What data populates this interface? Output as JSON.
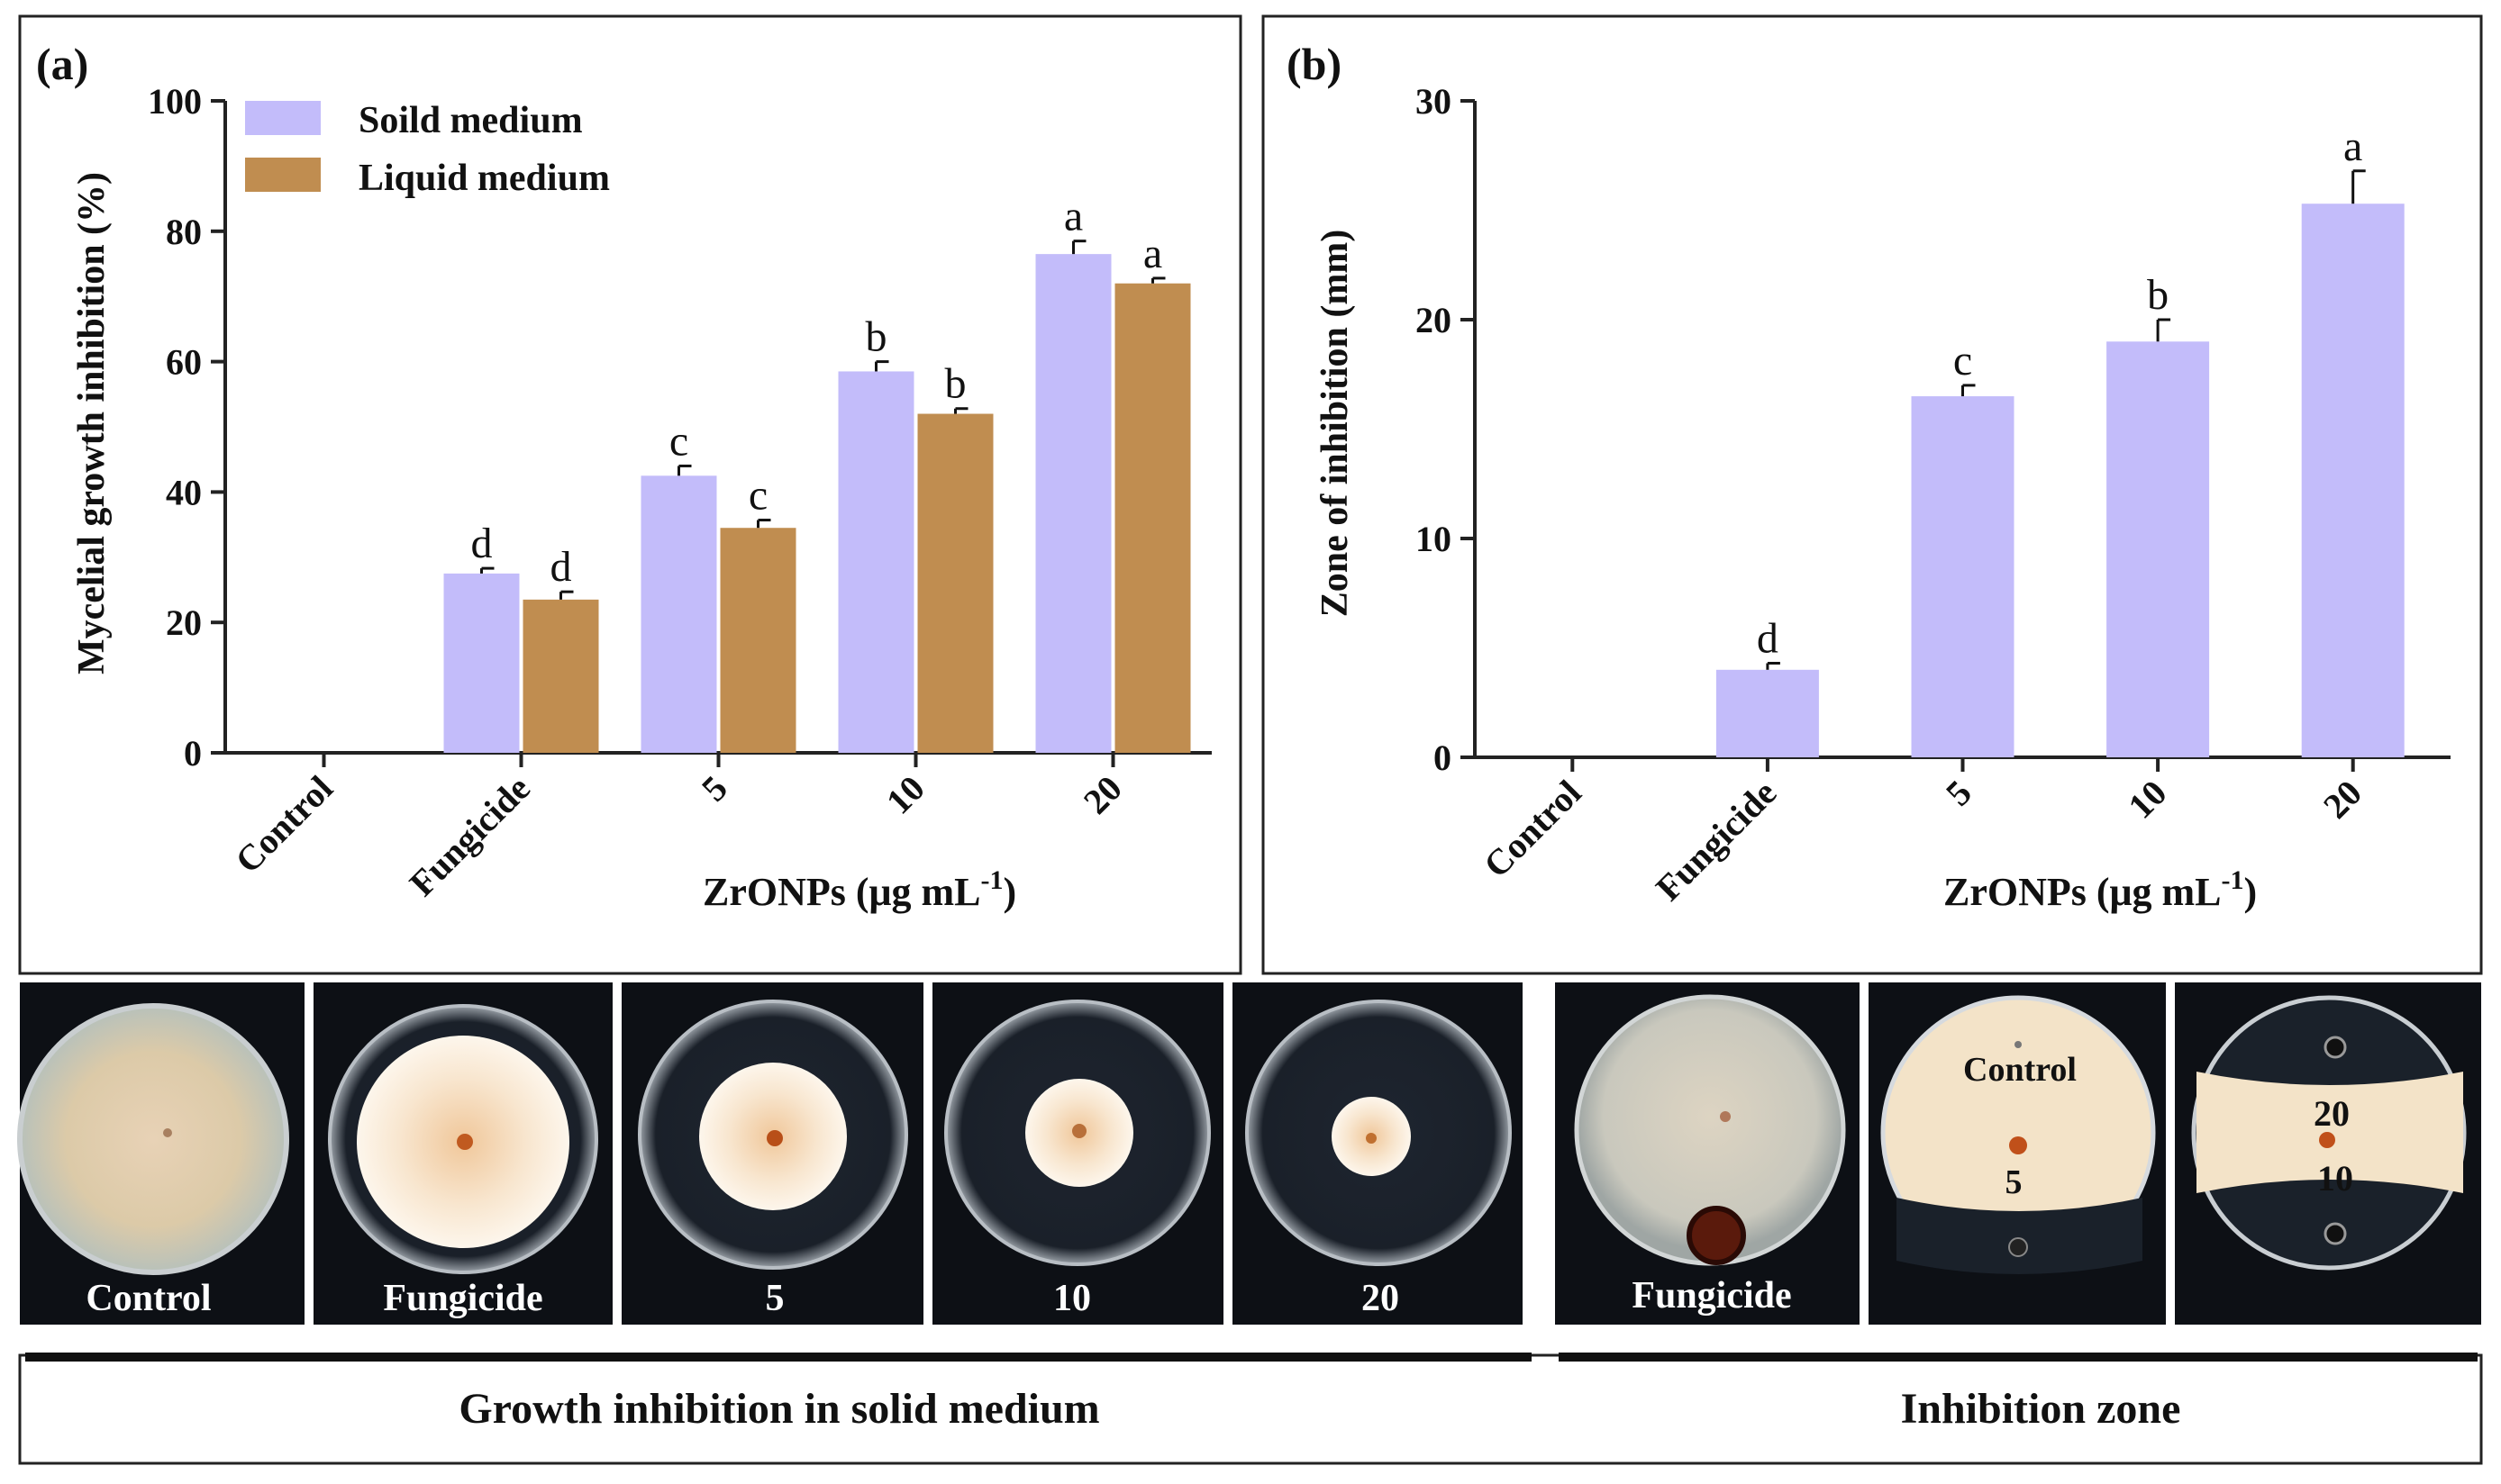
{
  "chart_data": [
    {
      "panel_label": "(a)",
      "type": "bar",
      "ylabel": "Mycelial growth inhibition (%)",
      "xlabel_main": "ZrONPs (μg mL",
      "xlabel_sup": "-1",
      "xlabel_close": ")",
      "ylim": [
        0,
        100
      ],
      "yticks": [
        "0",
        "20",
        "40",
        "60",
        "80",
        "100"
      ],
      "categories": [
        "Control",
        "Fungicide",
        "5",
        "10",
        "20"
      ],
      "series": [
        {
          "name": "Soild medium",
          "color": "#c3bcfa",
          "values": [
            0,
            27.5,
            42.5,
            58.5,
            76.5
          ],
          "errors": [
            0,
            0.8,
            1.5,
            1.5,
            2.0
          ],
          "letters": [
            "",
            "d",
            "c",
            "b",
            "a"
          ]
        },
        {
          "name": "Liquid medium",
          "color": "#c08d50",
          "values": [
            0,
            23.5,
            34.5,
            52,
            72
          ],
          "errors": [
            0,
            1.2,
            1.2,
            0.8,
            0.8
          ],
          "letters": [
            "",
            "d",
            "c",
            "b",
            "a"
          ]
        }
      ]
    },
    {
      "panel_label": "(b)",
      "type": "bar",
      "ylabel": "Zone of inhibition (mm)",
      "xlabel_main": "ZrONPs (μg mL",
      "xlabel_sup": "-1",
      "xlabel_close": ")",
      "ylim": [
        0,
        30
      ],
      "yticks": [
        "0",
        "10",
        "20",
        "30"
      ],
      "categories": [
        "Control",
        "Fungicide",
        "5",
        "10",
        "20"
      ],
      "series": [
        {
          "name": "Zone of inhibition",
          "color": "#c3bcfa",
          "values": [
            0,
            4,
            16.5,
            19,
            25.3
          ],
          "errors": [
            0,
            0.3,
            0.5,
            1.0,
            1.5
          ],
          "letters": [
            "",
            "d",
            "c",
            "b",
            "a"
          ]
        }
      ]
    }
  ],
  "photos": {
    "solid_labels": [
      "Control",
      "Fungicide",
      "5",
      "10",
      "20"
    ],
    "zone_labels": [
      "Fungicide",
      "Control",
      "5",
      "20",
      "10"
    ],
    "solid_caption": "Growth inhibition in solid medium",
    "zone_caption": "Inhibition zone"
  },
  "colors": {
    "photo_bg": "#0d1015",
    "agar": "#f2e0c6",
    "axis": "#222222"
  }
}
